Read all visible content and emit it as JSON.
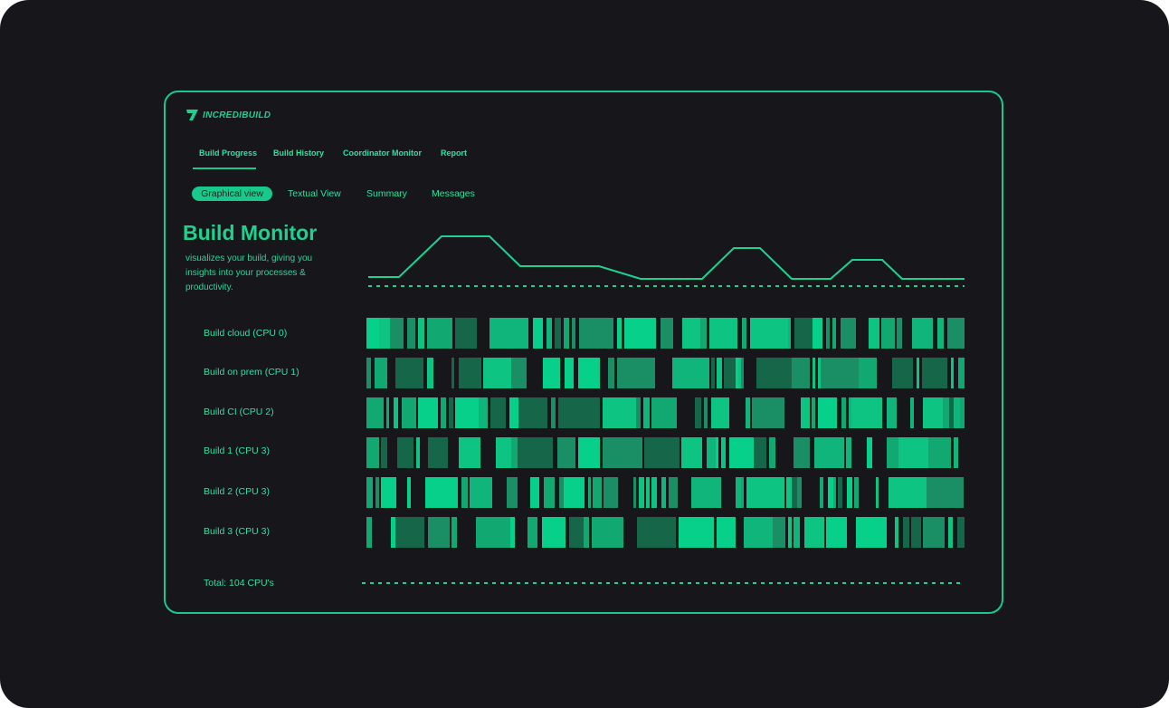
{
  "brand": {
    "name": "INCREDIBUILD"
  },
  "nav": {
    "tabs": [
      "Build Progress",
      "Build History",
      "Coordinator Monitor",
      "Report"
    ],
    "active": 0
  },
  "subtabs": {
    "items": [
      "Graphical view",
      "Textual View",
      "Summary",
      "Messages"
    ],
    "active": 0
  },
  "hero": {
    "title": "Build Monitor",
    "description": "visualizes your build, giving you insights into your processes & productivity."
  },
  "rows": [
    {
      "label": "Build cloud (CPU 0)"
    },
    {
      "label": "Build on prem (CPU 1)"
    },
    {
      "label": "Build CI (CPU 2)"
    },
    {
      "label": "Build 1 (CPU 3)"
    },
    {
      "label": "Build 2 (CPU 3)"
    },
    {
      "label": "Build 3 (CPU 3)"
    }
  ],
  "total": "Total: 104 CPU's",
  "colors": {
    "accent": "#19c98b",
    "background": "#17171b",
    "bright": "#06d08a",
    "dark": "#16664a"
  }
}
